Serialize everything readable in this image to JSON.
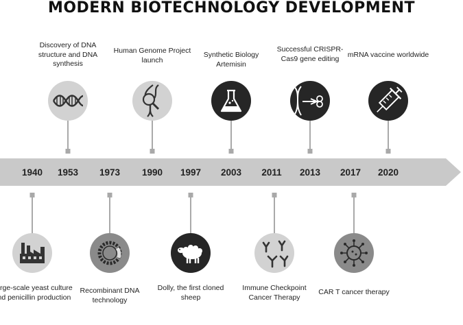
{
  "title": "MODERN BIOTECHNOLOGY DEVELOPMENT",
  "top_events": [
    {
      "year": "1953",
      "label": "Discovery of DNA structure and DNA synthesis",
      "icon": "dna-helix-icon"
    },
    {
      "year": "1990",
      "label": "Human Genome Project launch",
      "icon": "dna-magnifier-icon"
    },
    {
      "year": "2003",
      "label": "Synthetic Biology Artemisin",
      "icon": "flask-icon"
    },
    {
      "year": "2013",
      "label": "Successful CRISPR-Cas9 gene editing",
      "icon": "crispr-scissors-icon"
    },
    {
      "year": "2020",
      "label": "mRNA vaccine worldwide",
      "icon": "syringe-icon"
    }
  ],
  "bottom_events": [
    {
      "year": "1940",
      "label": "Large-scale yeast culture and penicillin production",
      "icon": "factory-icon"
    },
    {
      "year": "1973",
      "label": "Recombinant DNA technology",
      "icon": "plasmid-icon"
    },
    {
      "year": "1997",
      "label": "Dolly, the first cloned sheep",
      "icon": "sheep-icon"
    },
    {
      "year": "2011",
      "label": "Immune Checkpoint Cancer Therapy",
      "icon": "antibody-icon"
    },
    {
      "year": "2017",
      "label": "CAR T cancer therapy",
      "icon": "car-t-cell-icon"
    }
  ]
}
